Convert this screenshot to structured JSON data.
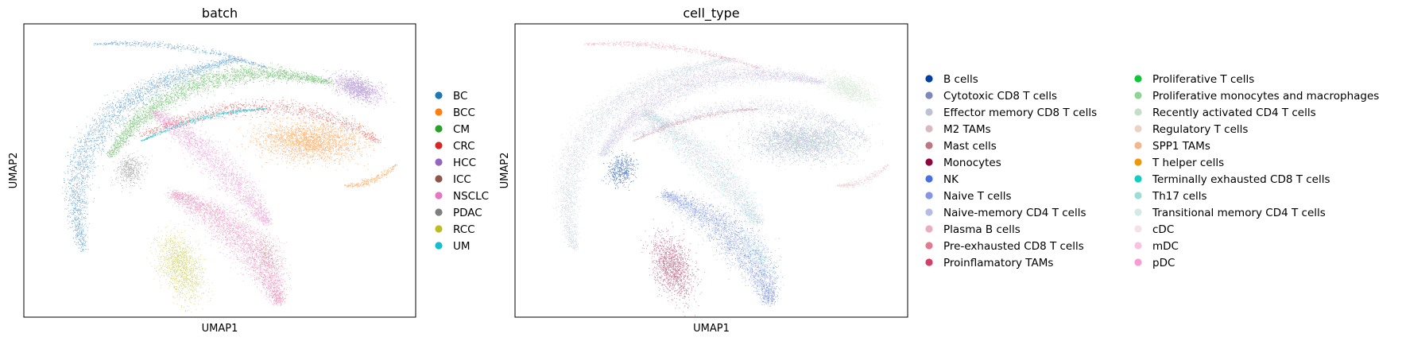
{
  "chart_data": [
    {
      "type": "scatter",
      "title": "batch",
      "xlabel": "UMAP1",
      "ylabel": "UMAP2",
      "grid": false,
      "legend_position": "right",
      "legend": [
        {
          "name": "BC",
          "color": "#1f77b4"
        },
        {
          "name": "BCC",
          "color": "#ff7f0e"
        },
        {
          "name": "CM",
          "color": "#2ca02c"
        },
        {
          "name": "CRC",
          "color": "#d62728"
        },
        {
          "name": "HCC",
          "color": "#9467bd"
        },
        {
          "name": "ICC",
          "color": "#8c564b"
        },
        {
          "name": "NSCLC",
          "color": "#e377c2"
        },
        {
          "name": "PDAC",
          "color": "#7f7f7f"
        },
        {
          "name": "RCC",
          "color": "#bcbd22"
        },
        {
          "name": "UM",
          "color": "#17becf"
        }
      ]
    },
    {
      "type": "scatter",
      "title": "cell_type",
      "xlabel": "UMAP1",
      "ylabel": "UMAP2",
      "grid": false,
      "legend_position": "right",
      "legend": [
        {
          "name": "B cells",
          "color": "#023fa5"
        },
        {
          "name": "Cytotoxic CD8 T cells",
          "color": "#7d87b9"
        },
        {
          "name": "Effector memory CD8 T cells",
          "color": "#bec1d4"
        },
        {
          "name": "M2 TAMs",
          "color": "#d6bcc0"
        },
        {
          "name": "Mast cells",
          "color": "#bb7784"
        },
        {
          "name": "Monocytes",
          "color": "#8e063b"
        },
        {
          "name": "NK",
          "color": "#4a6fe3"
        },
        {
          "name": "Naive T cells",
          "color": "#8595e1"
        },
        {
          "name": "Naive-memory CD4 T cells",
          "color": "#b5bbe3"
        },
        {
          "name": "Plasma B cells",
          "color": "#e6afb9"
        },
        {
          "name": "Pre-exhausted CD8 T cells",
          "color": "#e07b91"
        },
        {
          "name": "Proinflamatory TAMs",
          "color": "#d33f6a"
        },
        {
          "name": "Proliferative T cells",
          "color": "#11c638"
        },
        {
          "name": "Proliferative monocytes and macrophages",
          "color": "#8dd593"
        },
        {
          "name": "Recently activated CD4 T cells",
          "color": "#c6dec7"
        },
        {
          "name": "Regulatory T cells",
          "color": "#ead3c6"
        },
        {
          "name": "SPP1 TAMs",
          "color": "#f0b98d"
        },
        {
          "name": "T helper cells",
          "color": "#ef9708"
        },
        {
          "name": "Terminally exhausted CD8 T cells",
          "color": "#0fcfc0"
        },
        {
          "name": "Th17 cells",
          "color": "#9cded6"
        },
        {
          "name": "Transitional memory CD4 T cells",
          "color": "#d5eae7"
        },
        {
          "name": "cDC",
          "color": "#f3e1eb"
        },
        {
          "name": "mDC",
          "color": "#f6c4e1"
        },
        {
          "name": "pDC",
          "color": "#f79cd4"
        }
      ]
    }
  ]
}
